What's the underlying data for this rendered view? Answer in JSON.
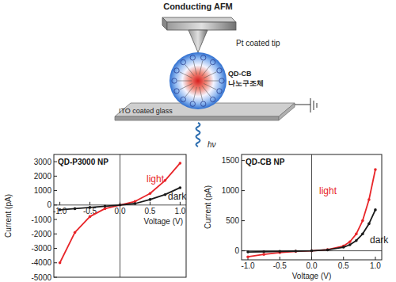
{
  "diagram": {
    "title": "Conducting AFM",
    "tip_label": "Pt coated tip",
    "particle_label": [
      "QD-CB",
      "나노구조체"
    ],
    "substrate_label": "ITO coated glass",
    "light_label": "hν"
  },
  "chart_data": [
    {
      "type": "line",
      "title": "QD-P3000 NP",
      "x_label": "Voltage (V)",
      "y_label": "Current (pA)",
      "x": [
        -1,
        -0.75,
        -0.5,
        -0.25,
        0,
        0.25,
        0.5,
        0.75,
        1
      ],
      "series": [
        {
          "name": "light",
          "color": "#e8262a",
          "marker": "circle",
          "values": [
            -4000,
            -1900,
            -800,
            -250,
            0,
            250,
            800,
            1700,
            2900
          ]
        },
        {
          "name": "dark",
          "color": "#1a1a1a",
          "marker": "circle",
          "values": [
            -330,
            -250,
            -170,
            -80,
            0,
            100,
            380,
            720,
            1200
          ]
        }
      ],
      "xlim": [
        -1.1,
        1.1
      ],
      "xticks": [
        {
          "value": -1,
          "label": "-1.0"
        },
        {
          "value": -0.5,
          "label": "-0.5"
        },
        {
          "value": 0,
          "label": "0.0"
        },
        {
          "value": 0.5,
          "label": "0.5"
        },
        {
          "value": 1,
          "label": "1.0"
        }
      ],
      "ylim": [
        -5000,
        3500
      ],
      "yticks": [
        -5000,
        -4000,
        -3000,
        -2000,
        -1000,
        0,
        1000,
        2000,
        3000
      ]
    },
    {
      "type": "line",
      "title": "QD-CB NP",
      "x_label": "Voltage (V)",
      "y_label": "Current (pA)",
      "x": [
        -1,
        -0.75,
        -0.5,
        -0.25,
        0,
        0.25,
        0.5,
        0.6,
        0.7,
        0.8,
        0.9,
        1
      ],
      "series": [
        {
          "name": "light",
          "color": "#e8262a",
          "marker": "circle",
          "values": [
            -100,
            -60,
            -30,
            -10,
            0,
            20,
            80,
            150,
            280,
            500,
            850,
            1350
          ]
        },
        {
          "name": "dark",
          "color": "#1a1a1a",
          "marker": "circle",
          "values": [
            -20,
            -15,
            -10,
            -5,
            0,
            15,
            60,
            100,
            170,
            280,
            450,
            680
          ]
        }
      ],
      "xlim": [
        -1.1,
        1.1
      ],
      "xticks": [
        {
          "value": -1,
          "label": "-1.0"
        },
        {
          "value": -0.5,
          "label": "-0.5"
        },
        {
          "value": 0,
          "label": "0.0"
        },
        {
          "value": 0.5,
          "label": "0.5"
        },
        {
          "value": 1,
          "label": "1.0"
        }
      ],
      "ylim": [
        -150,
        1600
      ],
      "yticks": [
        0,
        500,
        1000,
        1500
      ]
    }
  ]
}
